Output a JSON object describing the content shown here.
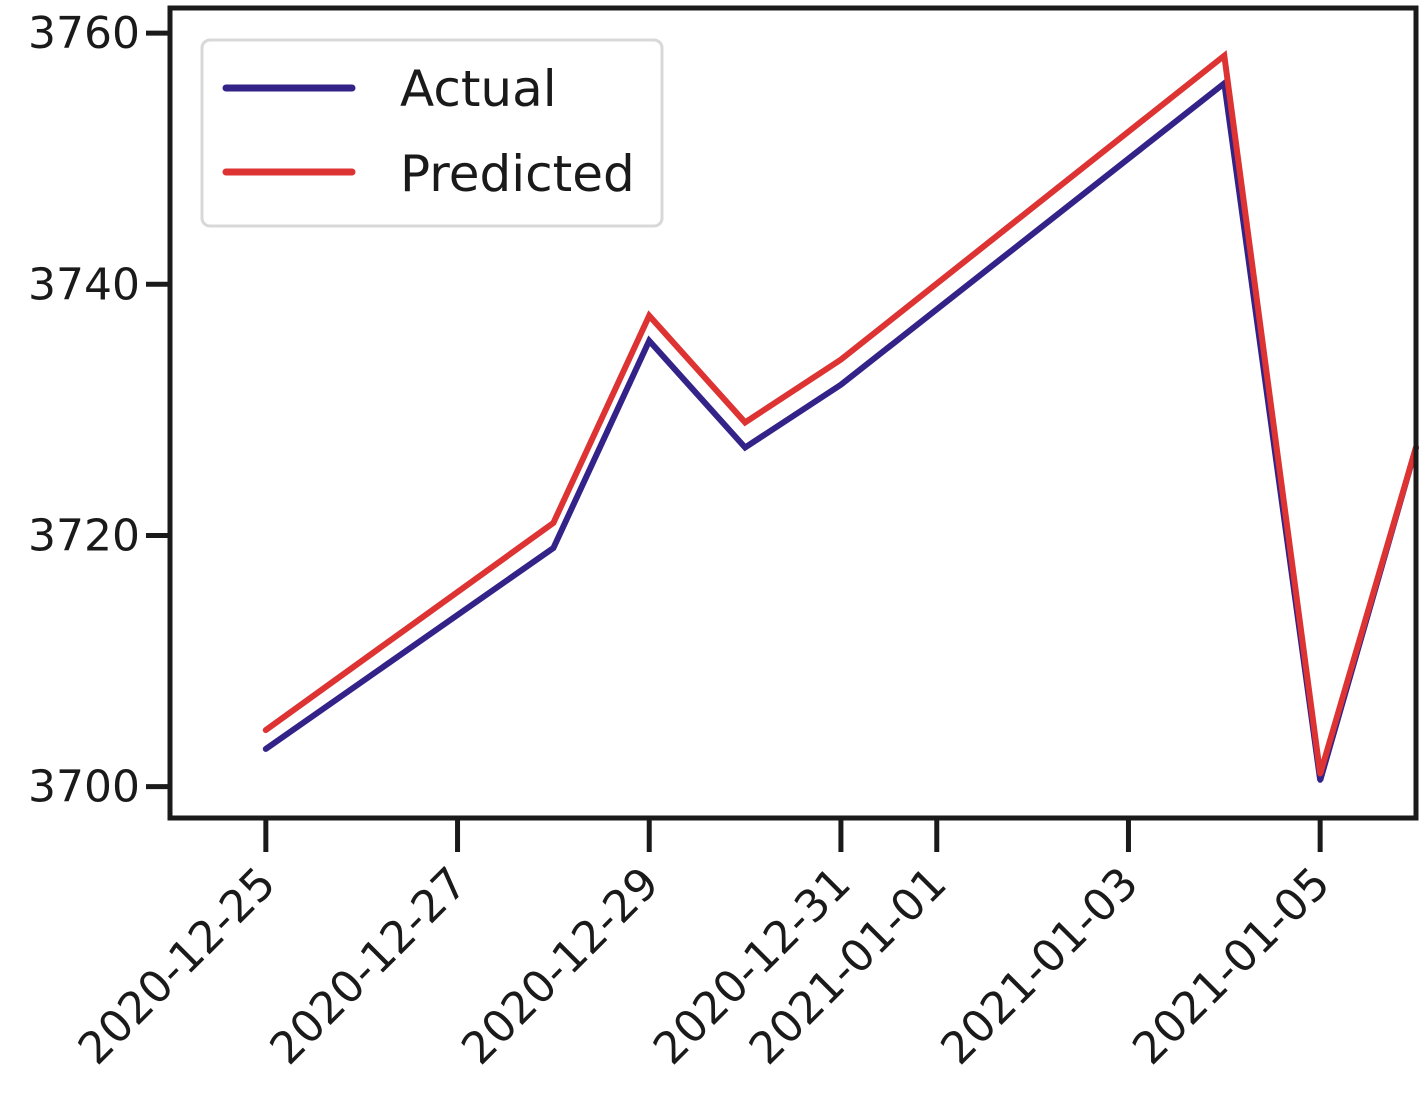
{
  "chart_data": {
    "type": "line",
    "title": "",
    "xlabel": "",
    "ylabel": "",
    "x": [
      "2020-12-25",
      "2020-12-28",
      "2020-12-29",
      "2020-12-30",
      "2020-12-31",
      "2021-01-04",
      "2021-01-05",
      "2021-01-06"
    ],
    "x_ticks": [
      "2020-12-25",
      "2020-12-27",
      "2020-12-29",
      "2020-12-31",
      "2021-01-01",
      "2021-01-03",
      "2021-01-05"
    ],
    "xlim": [
      "2020-12-24",
      "2021-01-06"
    ],
    "y_ticks": [
      3700,
      3720,
      3740,
      3760
    ],
    "ylim": [
      3697.5,
      3762
    ],
    "grid": false,
    "legend_position": "top-left",
    "series": [
      {
        "name": "Actual",
        "color": "#332288",
        "values": [
          3703,
          3719,
          3735.5,
          3727,
          3732,
          3756,
          3700.5,
          3727
        ]
      },
      {
        "name": "Predicted",
        "color": "#dd3333",
        "values": [
          3704.5,
          3721,
          3737.5,
          3729,
          3734,
          3758.2,
          3701,
          3727
        ]
      }
    ]
  }
}
